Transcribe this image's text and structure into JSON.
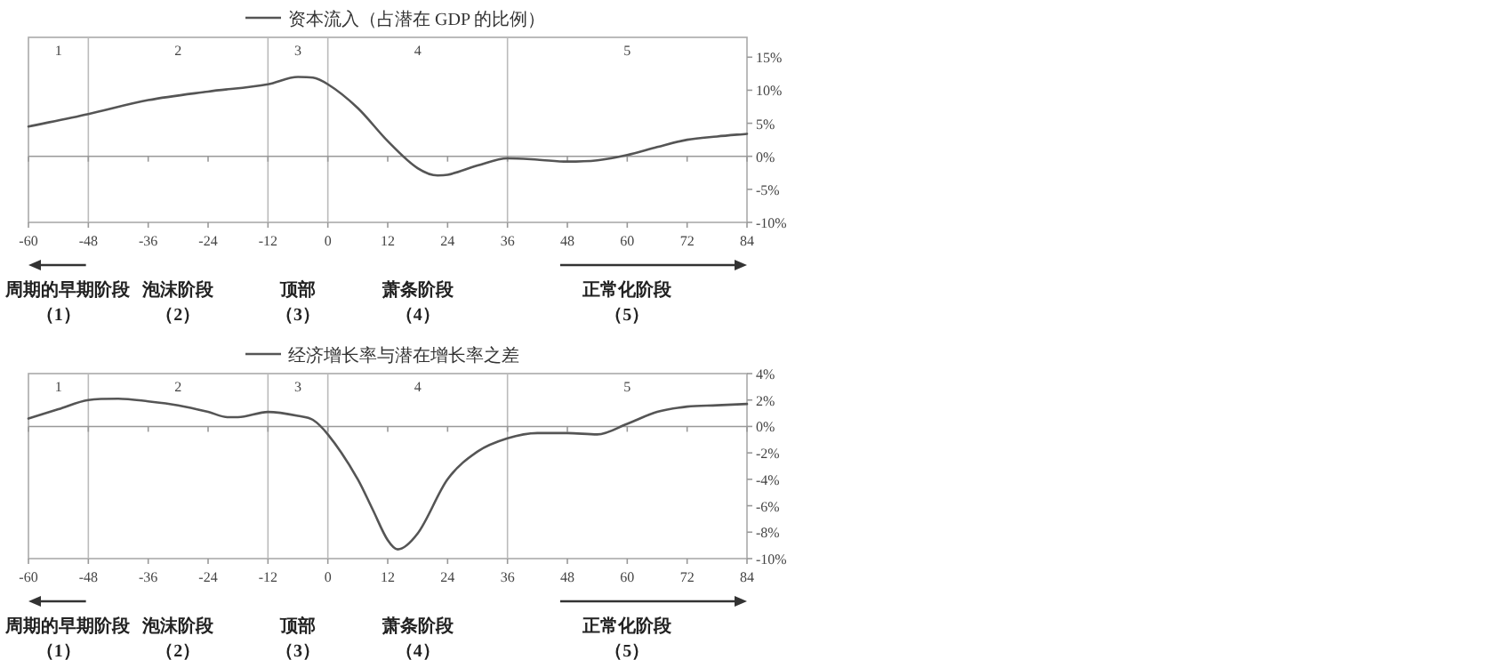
{
  "chart_data": [
    {
      "type": "line",
      "legend": "top",
      "grid": false,
      "x": [
        -60,
        -48,
        -36,
        -24,
        -12,
        -6,
        -3,
        0,
        6,
        12,
        18,
        22,
        24,
        30,
        36,
        42,
        48,
        54,
        60,
        66,
        72,
        78,
        84
      ],
      "series": [
        {
          "name": "资本流入（占潜在 GDP 的比例）",
          "color": "#555555",
          "values": [
            4.5,
            6.4,
            8.5,
            9.8,
            10.9,
            12.0,
            11.9,
            10.9,
            7.3,
            2.3,
            -1.8,
            -2.9,
            -2.8,
            -1.4,
            -0.3,
            -0.5,
            -0.8,
            -0.6,
            0.2,
            1.4,
            2.5,
            3.0,
            3.4
          ]
        }
      ],
      "xlim": [
        -60,
        84
      ],
      "xticks": [
        {
          "value": -60,
          "label": "-60"
        },
        {
          "value": -48,
          "label": "-48"
        },
        {
          "value": -36,
          "label": "-36"
        },
        {
          "value": -24,
          "label": "-24"
        },
        {
          "value": -12,
          "label": "-12"
        },
        0,
        12,
        24,
        36,
        48,
        60,
        72,
        84
      ],
      "ylim": [
        -10,
        18
      ],
      "yticks": [
        {
          "value": -10,
          "label": "-10%"
        },
        {
          "value": -5,
          "label": "-5%"
        },
        {
          "value": 0,
          "label": "0%"
        },
        {
          "value": 5,
          "label": "5%"
        },
        {
          "value": 10,
          "label": "10%"
        },
        {
          "value": 15,
          "label": "15%"
        }
      ],
      "ref_lines": [
        {
          "axis": "x",
          "value": -48,
          "color": "#bbbbbb"
        },
        {
          "axis": "x",
          "value": -12,
          "color": "#bbbbbb"
        },
        {
          "axis": "x",
          "value": 0,
          "color": "#bbbbbb"
        },
        {
          "axis": "x",
          "value": 36,
          "color": "#bbbbbb"
        }
      ],
      "annotations": [
        "1",
        "2",
        "3",
        "4",
        "5",
        "周期的早期阶段",
        "泡沫阶段",
        "顶部",
        "萧条阶段",
        "正常化阶段",
        "（1）",
        "（2）",
        "（3）",
        "（4）",
        "（5）"
      ]
    },
    {
      "type": "line",
      "legend": "top",
      "grid": false,
      "x": [
        -60,
        -54,
        -48,
        -42,
        -36,
        -30,
        -24,
        -20,
        -18,
        -12,
        -6,
        -3,
        0,
        6,
        9,
        12,
        14,
        18,
        24,
        30,
        36,
        42,
        48,
        54,
        60,
        66,
        72,
        78,
        84
      ],
      "series": [
        {
          "name": "经济增长率与潜在增长率之差",
          "color": "#555555",
          "values": [
            0.6,
            1.3,
            2.0,
            2.1,
            1.9,
            1.6,
            1.1,
            0.7,
            0.7,
            1.1,
            0.8,
            0.5,
            -0.6,
            -4.0,
            -6.3,
            -8.6,
            -9.3,
            -8.1,
            -4.0,
            -1.9,
            -0.9,
            -0.5,
            -0.5,
            -0.6,
            0.2,
            1.1,
            1.5,
            1.6,
            1.7
          ]
        }
      ],
      "xlim": [
        -60,
        84
      ],
      "xticks": [
        {
          "value": -60,
          "label": "-60"
        },
        {
          "value": -48,
          "label": "-48"
        },
        {
          "value": -36,
          "label": "-36"
        },
        {
          "value": -24,
          "label": "-24"
        },
        {
          "value": -12,
          "label": "-12"
        },
        0,
        12,
        24,
        36,
        48,
        60,
        72,
        84
      ],
      "ylim": [
        -10,
        4
      ],
      "yticks": [
        {
          "value": -10,
          "label": "-10%"
        },
        {
          "value": -8,
          "label": "-8%"
        },
        {
          "value": -6,
          "label": "-6%"
        },
        {
          "value": -4,
          "label": "-4%"
        },
        {
          "value": -2,
          "label": "-2%"
        },
        {
          "value": 0,
          "label": "0%"
        },
        {
          "value": 2,
          "label": "2%"
        },
        {
          "value": 4,
          "label": "4%"
        }
      ],
      "ref_lines": [
        {
          "axis": "x",
          "value": -48,
          "color": "#bbbbbb"
        },
        {
          "axis": "x",
          "value": -12,
          "color": "#bbbbbb"
        },
        {
          "axis": "x",
          "value": 0,
          "color": "#bbbbbb"
        },
        {
          "axis": "x",
          "value": 36,
          "color": "#bbbbbb"
        }
      ],
      "annotations": [
        "1",
        "2",
        "3",
        "4",
        "5",
        "周期的早期阶段",
        "泡沫阶段",
        "顶部",
        "萧条阶段",
        "正常化阶段",
        "（1）",
        "（2）",
        "（3）",
        "（4）",
        "（5）"
      ]
    }
  ]
}
